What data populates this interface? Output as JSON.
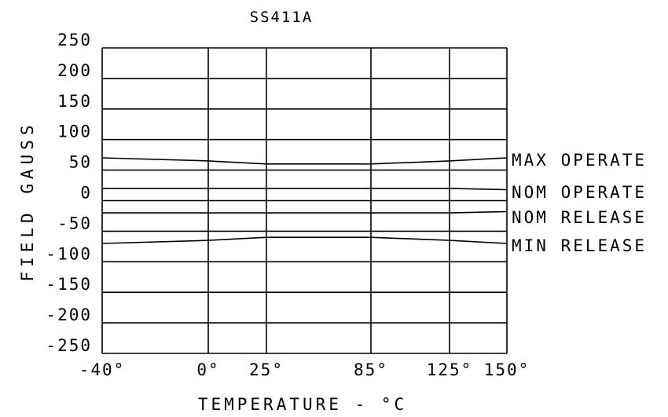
{
  "chart_data": {
    "type": "line",
    "title": "SS411A",
    "xlabel": "TEMPERATURE - °C",
    "ylabel": "FIELD GAUSS",
    "x_ticks": [
      -40,
      0,
      25,
      85,
      125,
      150
    ],
    "x_tick_labels": [
      "-40°",
      "0°",
      "25°",
      "85°",
      "125°",
      "150°"
    ],
    "xlim": [
      -40,
      150
    ],
    "y_ticks": [
      250,
      200,
      150,
      100,
      50,
      0,
      -50,
      -100,
      -150,
      -200,
      -250
    ],
    "y_tick_labels": [
      "250",
      "200",
      "150",
      "100",
      "50",
      "0",
      "-50",
      "-100",
      "-150",
      "-200",
      "-250"
    ],
    "ylim": [
      -250,
      250
    ],
    "grid": true,
    "series": [
      {
        "name": "MAX OPERATE",
        "x": [
          -40,
          0,
          25,
          85,
          125,
          150
        ],
        "values": [
          70,
          65,
          60,
          60,
          65,
          70
        ]
      },
      {
        "name": "NOM OPERATE",
        "x": [
          -40,
          0,
          25,
          85,
          125,
          150
        ],
        "values": [
          20,
          20,
          20,
          20,
          20,
          18
        ]
      },
      {
        "name": "NOM RELEASE",
        "x": [
          -40,
          0,
          25,
          85,
          125,
          150
        ],
        "values": [
          -20,
          -20,
          -20,
          -20,
          -20,
          -18
        ]
      },
      {
        "name": "MIN RELEASE",
        "x": [
          -40,
          0,
          25,
          85,
          125,
          150
        ],
        "values": [
          -70,
          -65,
          -60,
          -60,
          -65,
          -70
        ]
      }
    ],
    "line_color": "#000000"
  }
}
